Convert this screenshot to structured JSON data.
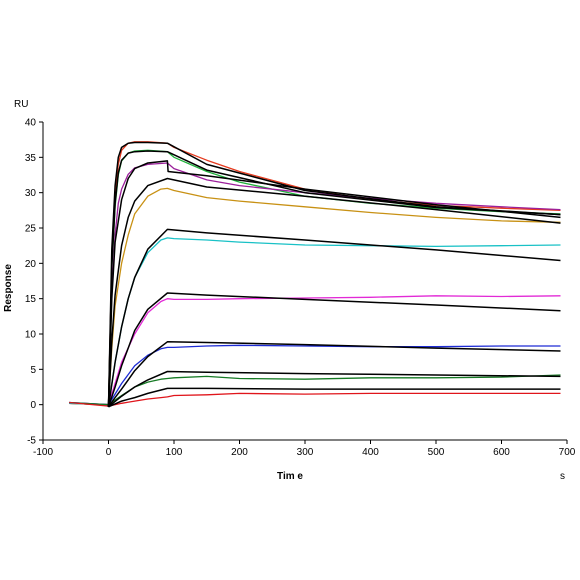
{
  "chart_data": {
    "type": "line",
    "title": "",
    "xlabel": "Tim e",
    "xunit": "s",
    "ylabel": "Response",
    "yunit": "RU",
    "xlim": [
      -100,
      700
    ],
    "ylim": [
      -5,
      40
    ],
    "xticks": [
      -100,
      0,
      100,
      200,
      300,
      400,
      500,
      600,
      700
    ],
    "yticks": [
      -5,
      0,
      5,
      10,
      15,
      20,
      25,
      30,
      35,
      40
    ],
    "grid": false,
    "legend": "none",
    "colors": {
      "red": "#e53a1e",
      "green": "#1fb13b",
      "purple": "#9b1f9b",
      "gold": "#c89114",
      "cyan": "#19c1c6",
      "magenta": "#e22ad6",
      "blue": "#1d2bd5",
      "darkgreen": "#167a24",
      "darkred": "#e0151b",
      "fit": "#000000"
    },
    "series": [
      {
        "color": "#e53a1e",
        "x": [
          -60,
          0,
          5,
          10,
          15,
          20,
          30,
          40,
          60,
          90,
          100,
          150,
          200,
          300,
          400,
          500,
          600,
          690
        ],
        "y": [
          0.2,
          0,
          20,
          30,
          34,
          36,
          37,
          37.2,
          37.2,
          37,
          36.4,
          34.6,
          33,
          30.5,
          29,
          28.2,
          27.8,
          27.5
        ]
      },
      {
        "color": "#1fb13b",
        "x": [
          -60,
          0,
          5,
          10,
          15,
          20,
          30,
          40,
          60,
          90,
          100,
          150,
          200,
          300,
          400,
          500,
          600,
          690
        ],
        "y": [
          0.2,
          0,
          19,
          28,
          32.5,
          34.5,
          35.6,
          35.9,
          36,
          35.8,
          35,
          33,
          31.5,
          29.5,
          28.5,
          27.8,
          27.3,
          27
        ]
      },
      {
        "color": "#9b1f9b",
        "x": [
          -60,
          0,
          5,
          10,
          15,
          20,
          30,
          40,
          60,
          90,
          100,
          150,
          200,
          300,
          400,
          500,
          600,
          690
        ],
        "y": [
          0.2,
          0,
          16,
          24,
          28.5,
          30.5,
          32.6,
          33.5,
          34,
          34.2,
          33.4,
          31.8,
          31,
          30,
          29.2,
          28.5,
          28,
          27.6
        ]
      },
      {
        "color": "#c89114",
        "x": [
          -60,
          0,
          5,
          10,
          20,
          30,
          40,
          60,
          80,
          90,
          100,
          150,
          200,
          300,
          400,
          500,
          600,
          690
        ],
        "y": [
          0.2,
          0,
          8,
          14,
          20,
          24,
          27,
          29.5,
          30.5,
          30.6,
          30.3,
          29.3,
          28.8,
          28,
          27.2,
          26.5,
          26,
          25.8
        ]
      },
      {
        "color": "#19c1c6",
        "x": [
          -60,
          0,
          10,
          20,
          30,
          40,
          60,
          80,
          90,
          100,
          150,
          200,
          300,
          400,
          500,
          600,
          690
        ],
        "y": [
          0.2,
          0,
          6,
          11,
          15,
          18,
          21.5,
          23.3,
          23.6,
          23.5,
          23.3,
          23,
          22.6,
          22.5,
          22.4,
          22.5,
          22.6
        ]
      },
      {
        "color": "#e22ad6",
        "x": [
          -60,
          0,
          10,
          20,
          40,
          60,
          80,
          90,
          100,
          150,
          200,
          300,
          400,
          500,
          600,
          690
        ],
        "y": [
          0.3,
          0,
          3,
          6,
          10,
          13,
          14.6,
          15,
          14.9,
          14.9,
          15,
          15.1,
          15.2,
          15.4,
          15.3,
          15.4
        ]
      },
      {
        "color": "#1d2bd5",
        "x": [
          -60,
          0,
          10,
          20,
          40,
          60,
          80,
          90,
          100,
          150,
          200,
          300,
          400,
          500,
          600,
          690
        ],
        "y": [
          0.3,
          0,
          1.5,
          3,
          5.5,
          7,
          7.9,
          8.1,
          8.1,
          8.3,
          8.4,
          8.3,
          8.2,
          8.2,
          8.3,
          8.3
        ]
      },
      {
        "color": "#167a24",
        "x": [
          -60,
          0,
          20,
          40,
          60,
          80,
          90,
          100,
          150,
          200,
          300,
          400,
          500,
          600,
          690
        ],
        "y": [
          0.3,
          0,
          1.3,
          2.5,
          3.2,
          3.6,
          3.7,
          3.8,
          4,
          3.7,
          3.6,
          3.8,
          3.8,
          3.9,
          4.2
        ]
      },
      {
        "color": "#e0151b",
        "x": [
          -60,
          0,
          20,
          40,
          60,
          80,
          90,
          100,
          150,
          200,
          300,
          400,
          500,
          600,
          690
        ],
        "y": [
          0.3,
          -0.2,
          0.2,
          0.5,
          0.8,
          1,
          1.1,
          1.3,
          1.4,
          1.6,
          1.5,
          1.6,
          1.6,
          1.6,
          1.6
        ]
      }
    ],
    "fits": [
      {
        "x": [
          0,
          5,
          10,
          15,
          20,
          30,
          40,
          60,
          90,
          150,
          300,
          500,
          690
        ],
        "y": [
          -0.3,
          22,
          31,
          35,
          36.4,
          37,
          37.1,
          37.1,
          37,
          34,
          30.3,
          28,
          26.9
        ]
      },
      {
        "x": [
          0,
          5,
          10,
          15,
          20,
          30,
          40,
          60,
          90,
          150,
          300,
          500,
          690
        ],
        "y": [
          -0.3,
          19.5,
          28.5,
          32.8,
          34.6,
          35.6,
          35.8,
          35.9,
          35.8,
          33.2,
          30,
          27.9,
          26.9
        ]
      },
      {
        "x": [
          0,
          5,
          10,
          20,
          30,
          40,
          60,
          90,
          91,
          150,
          300,
          500,
          690
        ],
        "y": [
          -0.3,
          15,
          23,
          29,
          32,
          33.4,
          34.2,
          34.5,
          33,
          32.4,
          30.5,
          28.3,
          26.5
        ]
      },
      {
        "x": [
          0,
          5,
          10,
          20,
          30,
          40,
          60,
          90,
          150,
          300,
          500,
          690
        ],
        "y": [
          -0.3,
          9,
          15.5,
          22.5,
          26.5,
          28.8,
          31,
          32,
          30.8,
          29.5,
          27.6,
          25.7
        ]
      },
      {
        "x": [
          0,
          10,
          20,
          30,
          40,
          60,
          90,
          150,
          300,
          500,
          690
        ],
        "y": [
          -0.3,
          6,
          11,
          15,
          18,
          22,
          24.8,
          24.3,
          23.3,
          21.9,
          20.4
        ]
      },
      {
        "x": [
          0,
          10,
          20,
          30,
          40,
          60,
          90,
          150,
          300,
          500,
          690
        ],
        "y": [
          -0.3,
          2.5,
          5.5,
          8,
          10.5,
          13.5,
          15.8,
          15.5,
          14.9,
          14.1,
          13.3
        ]
      },
      {
        "x": [
          0,
          10,
          20,
          30,
          40,
          60,
          90,
          150,
          300,
          500,
          690
        ],
        "y": [
          -0.3,
          1,
          2.2,
          3.5,
          4.8,
          6.8,
          8.9,
          8.8,
          8.5,
          8,
          7.6
        ]
      },
      {
        "x": [
          0,
          20,
          40,
          60,
          90,
          150,
          300,
          500,
          690
        ],
        "y": [
          -0.3,
          1.2,
          2.5,
          3.5,
          4.7,
          4.6,
          4.4,
          4.2,
          4
        ]
      },
      {
        "x": [
          0,
          20,
          40,
          60,
          90,
          150,
          300,
          500,
          690
        ],
        "y": [
          -0.3,
          0.5,
          1,
          1.6,
          2.3,
          2.3,
          2.2,
          2.2,
          2.2
        ]
      }
    ]
  }
}
